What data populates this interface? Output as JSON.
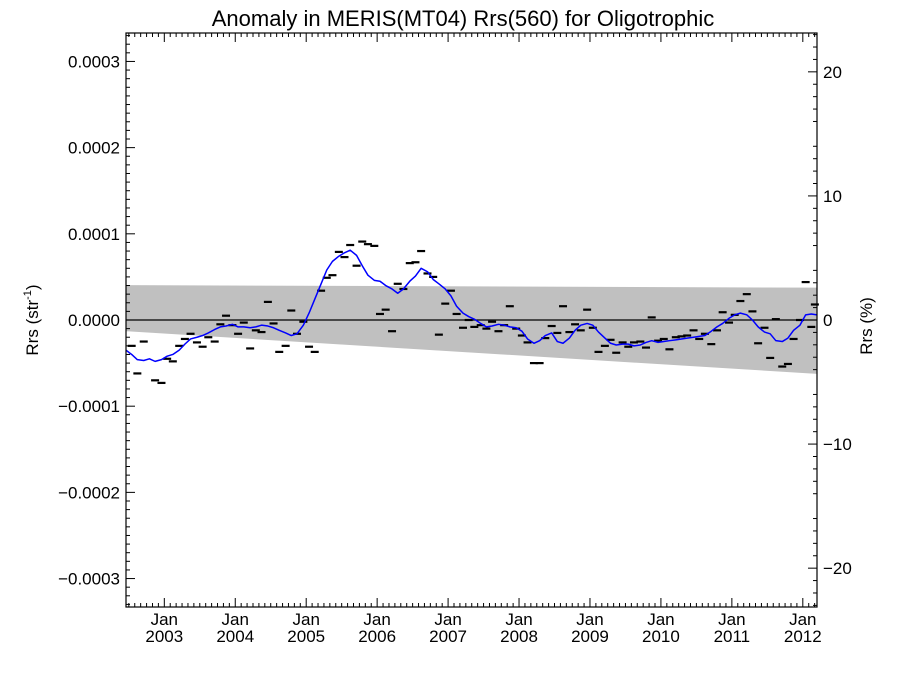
{
  "chart_data": {
    "type": "line",
    "title": "Anomaly in MERIS(MT04) Rrs(560) for Oligotrophic",
    "ylabel_left_main": "Rrs (str",
    "ylabel_left_sup": "-1",
    "ylabel_left_close": ")",
    "ylabel_right": "Rrs (%)",
    "y_left": {
      "range": [
        -0.000333,
        0.000333
      ],
      "ticks": [
        {
          "v": 0.0003,
          "label": "0.0003"
        },
        {
          "v": 0.0002,
          "label": "0.0002"
        },
        {
          "v": 0.0001,
          "label": "0.0001"
        },
        {
          "v": 0.0,
          "label": "0.0000"
        },
        {
          "v": -0.0001,
          "label": "−0.0001"
        },
        {
          "v": -0.0002,
          "label": "−0.0002"
        },
        {
          "v": -0.0003,
          "label": "−0.0003"
        }
      ]
    },
    "y_right": {
      "range": [
        -23.13,
        23.13
      ],
      "ticks": [
        {
          "v": 20,
          "label": "20"
        },
        {
          "v": 10,
          "label": "10"
        },
        {
          "v": 0,
          "label": "0"
        },
        {
          "v": -10,
          "label": "−10"
        },
        {
          "v": -20,
          "label": "−20"
        }
      ]
    },
    "x": {
      "range": [
        2002.46,
        2012.2
      ],
      "ticks": [
        {
          "v": 2003.0,
          "month": "Jan",
          "year": "2003"
        },
        {
          "v": 2004.0,
          "month": "Jan",
          "year": "2004"
        },
        {
          "v": 2005.0,
          "month": "Jan",
          "year": "2005"
        },
        {
          "v": 2006.0,
          "month": "Jan",
          "year": "2006"
        },
        {
          "v": 2007.0,
          "month": "Jan",
          "year": "2007"
        },
        {
          "v": 2008.0,
          "month": "Jan",
          "year": "2008"
        },
        {
          "v": 2009.0,
          "month": "Jan",
          "year": "2009"
        },
        {
          "v": 2010.0,
          "month": "Jan",
          "year": "2010"
        },
        {
          "v": 2011.0,
          "month": "Jan",
          "year": "2011"
        },
        {
          "v": 2012.0,
          "month": "Jan",
          "year": "2012"
        }
      ]
    },
    "zero_line": 0.0,
    "band": {
      "color": "#c0c0c0",
      "upper": [
        [
          2002.46,
          4.05e-05
        ],
        [
          2012.2,
          3.75e-05
        ]
      ],
      "lower": [
        [
          2002.46,
          -1.3e-05
        ],
        [
          2012.2,
          -6.25e-05
        ]
      ]
    },
    "series": [
      {
        "kind": "monthly_marks",
        "color": "#000000",
        "points": [
          [
            2002.54,
            -3e-05
          ],
          [
            2002.62,
            -6.2e-05
          ],
          [
            2002.71,
            -2.5e-05
          ],
          [
            2002.87,
            -7e-05
          ],
          [
            2002.96,
            -7.3e-05
          ],
          [
            2003.04,
            -4.5e-05
          ],
          [
            2003.12,
            -4.8e-05
          ],
          [
            2003.21,
            -3e-05
          ],
          [
            2003.29,
            -2.2e-05
          ],
          [
            2003.37,
            -1.6e-05
          ],
          [
            2003.46,
            -2.6e-05
          ],
          [
            2003.54,
            -3.1e-05
          ],
          [
            2003.62,
            -2e-05
          ],
          [
            2003.71,
            -2.5e-05
          ],
          [
            2003.79,
            -5e-06
          ],
          [
            2003.87,
            5e-06
          ],
          [
            2003.96,
            -6e-06
          ],
          [
            2004.04,
            -1.6e-05
          ],
          [
            2004.12,
            -3e-06
          ],
          [
            2004.21,
            -3.3e-05
          ],
          [
            2004.29,
            -1.2e-05
          ],
          [
            2004.37,
            -1.4e-05
          ],
          [
            2004.46,
            2.1e-05
          ],
          [
            2004.54,
            -4e-06
          ],
          [
            2004.62,
            -3.7e-05
          ],
          [
            2004.71,
            -3e-05
          ],
          [
            2004.79,
            1.1e-05
          ],
          [
            2004.87,
            -1.6e-05
          ],
          [
            2004.96,
            -2e-06
          ],
          [
            2005.04,
            -3.1e-05
          ],
          [
            2005.12,
            -3.7e-05
          ],
          [
            2005.21,
            3.4e-05
          ],
          [
            2005.29,
            4.9e-05
          ],
          [
            2005.37,
            5.2e-05
          ],
          [
            2005.46,
            7.9e-05
          ],
          [
            2005.54,
            7.3e-05
          ],
          [
            2005.62,
            8.7e-05
          ],
          [
            2005.71,
            6.3e-05
          ],
          [
            2005.79,
            9.1e-05
          ],
          [
            2005.87,
            8.8e-05
          ],
          [
            2005.96,
            8.6e-05
          ],
          [
            2006.04,
            7e-06
          ],
          [
            2006.12,
            1.2e-05
          ],
          [
            2006.21,
            -1.3e-05
          ],
          [
            2006.29,
            4.2e-05
          ],
          [
            2006.37,
            3.6e-05
          ],
          [
            2006.46,
            6.6e-05
          ],
          [
            2006.54,
            6.7e-05
          ],
          [
            2006.62,
            8e-05
          ],
          [
            2006.71,
            5.4e-05
          ],
          [
            2006.79,
            5e-05
          ],
          [
            2006.87,
            -1.7e-05
          ],
          [
            2006.96,
            1.9e-05
          ],
          [
            2007.04,
            3.4e-05
          ],
          [
            2007.12,
            7e-06
          ],
          [
            2007.21,
            -9e-06
          ],
          [
            2007.29,
            0.0
          ],
          [
            2007.37,
            -8e-06
          ],
          [
            2007.46,
            -6e-06
          ],
          [
            2007.54,
            -1e-05
          ],
          [
            2007.62,
            -2e-06
          ],
          [
            2007.71,
            -1.3e-05
          ],
          [
            2007.79,
            -6e-06
          ],
          [
            2007.87,
            1.6e-05
          ],
          [
            2007.96,
            -1e-05
          ],
          [
            2008.04,
            -1.8e-05
          ],
          [
            2008.12,
            -2.6e-05
          ],
          [
            2008.21,
            -5e-05
          ],
          [
            2008.29,
            -5e-05
          ],
          [
            2008.37,
            -2.1e-05
          ],
          [
            2008.46,
            -7e-06
          ],
          [
            2008.54,
            -1.5e-05
          ],
          [
            2008.62,
            1.6e-05
          ],
          [
            2008.71,
            -1.4e-05
          ],
          [
            2008.79,
            -5e-06
          ],
          [
            2008.87,
            -1.2e-05
          ],
          [
            2008.96,
            1.2e-05
          ],
          [
            2009.04,
            -9e-06
          ],
          [
            2009.12,
            -3.7e-05
          ],
          [
            2009.21,
            -3e-05
          ],
          [
            2009.29,
            -2.3e-05
          ],
          [
            2009.37,
            -3.8e-05
          ],
          [
            2009.46,
            -2.6e-05
          ],
          [
            2009.54,
            -3.1e-05
          ],
          [
            2009.62,
            -2.6e-05
          ],
          [
            2009.71,
            -2.5e-05
          ],
          [
            2009.79,
            -3.2e-05
          ],
          [
            2009.87,
            3e-06
          ],
          [
            2009.96,
            -2.4e-05
          ],
          [
            2010.04,
            -2.2e-05
          ],
          [
            2010.12,
            -3.4e-05
          ],
          [
            2010.21,
            -2e-05
          ],
          [
            2010.29,
            -1.9e-05
          ],
          [
            2010.37,
            -1.8e-05
          ],
          [
            2010.46,
            -1.2e-05
          ],
          [
            2010.54,
            -2.2e-05
          ],
          [
            2010.62,
            -1.6e-05
          ],
          [
            2010.71,
            -2.8e-05
          ],
          [
            2010.79,
            -1.2e-05
          ],
          [
            2010.87,
            9e-06
          ],
          [
            2010.96,
            -3e-06
          ],
          [
            2011.04,
            6e-06
          ],
          [
            2011.12,
            2.2e-05
          ],
          [
            2011.21,
            3e-05
          ],
          [
            2011.29,
            1e-05
          ],
          [
            2011.37,
            -2.7e-05
          ],
          [
            2011.46,
            -9e-06
          ],
          [
            2011.54,
            -4.4e-05
          ],
          [
            2011.62,
            1e-06
          ],
          [
            2011.71,
            -5.4e-05
          ],
          [
            2011.79,
            -5.1e-05
          ],
          [
            2011.87,
            -2.2e-05
          ],
          [
            2011.96,
            0.0
          ],
          [
            2012.04,
            4.4e-05
          ],
          [
            2012.12,
            -8e-06
          ],
          [
            2012.17,
            1.8e-05
          ]
        ]
      },
      {
        "kind": "running_mean",
        "color": "#0000ff",
        "points": [
          [
            2002.46,
            -3.5e-05
          ],
          [
            2002.54,
            -4e-05
          ],
          [
            2002.62,
            -4.6e-05
          ],
          [
            2002.71,
            -4.7e-05
          ],
          [
            2002.79,
            -4.5e-05
          ],
          [
            2002.87,
            -4.8e-05
          ],
          [
            2002.96,
            -4.6e-05
          ],
          [
            2003.04,
            -4.2e-05
          ],
          [
            2003.12,
            -4e-05
          ],
          [
            2003.21,
            -3.5e-05
          ],
          [
            2003.29,
            -2.8e-05
          ],
          [
            2003.37,
            -2.2e-05
          ],
          [
            2003.46,
            -2e-05
          ],
          [
            2003.54,
            -1.8e-05
          ],
          [
            2003.62,
            -1.5e-05
          ],
          [
            2003.71,
            -1.1e-05
          ],
          [
            2003.79,
            -8e-06
          ],
          [
            2003.87,
            -7e-06
          ],
          [
            2003.96,
            -5e-06
          ],
          [
            2004.04,
            -8e-06
          ],
          [
            2004.12,
            -8e-06
          ],
          [
            2004.21,
            -9e-06
          ],
          [
            2004.29,
            -8e-06
          ],
          [
            2004.37,
            -6e-06
          ],
          [
            2004.46,
            -7e-06
          ],
          [
            2004.54,
            -9e-06
          ],
          [
            2004.62,
            -1.2e-05
          ],
          [
            2004.71,
            -1.5e-05
          ],
          [
            2004.79,
            -1.8e-05
          ],
          [
            2004.87,
            -1.6e-05
          ],
          [
            2004.96,
            -6e-06
          ],
          [
            2005.04,
            8e-06
          ],
          [
            2005.12,
            2.4e-05
          ],
          [
            2005.21,
            4.2e-05
          ],
          [
            2005.29,
            5.8e-05
          ],
          [
            2005.37,
            6.8e-05
          ],
          [
            2005.46,
            7.4e-05
          ],
          [
            2005.54,
            7.8e-05
          ],
          [
            2005.62,
            8.1e-05
          ],
          [
            2005.71,
            7.5e-05
          ],
          [
            2005.79,
            6.3e-05
          ],
          [
            2005.87,
            5.2e-05
          ],
          [
            2005.96,
            4.6e-05
          ],
          [
            2006.04,
            4.5e-05
          ],
          [
            2006.12,
            4e-05
          ],
          [
            2006.21,
            3.6e-05
          ],
          [
            2006.29,
            3.1e-05
          ],
          [
            2006.37,
            3.6e-05
          ],
          [
            2006.46,
            4.5e-05
          ],
          [
            2006.54,
            5.1e-05
          ],
          [
            2006.62,
            6e-05
          ],
          [
            2006.71,
            5.6e-05
          ],
          [
            2006.79,
            4.7e-05
          ],
          [
            2006.87,
            4.2e-05
          ],
          [
            2006.96,
            3.6e-05
          ],
          [
            2007.04,
            2.8e-05
          ],
          [
            2007.12,
            1.6e-05
          ],
          [
            2007.21,
            8e-06
          ],
          [
            2007.29,
            4e-06
          ],
          [
            2007.37,
            1e-06
          ],
          [
            2007.46,
            -4e-06
          ],
          [
            2007.54,
            -8e-06
          ],
          [
            2007.62,
            -7e-06
          ],
          [
            2007.71,
            -5e-06
          ],
          [
            2007.79,
            -6e-06
          ],
          [
            2007.87,
            -8e-06
          ],
          [
            2007.96,
            -9e-06
          ],
          [
            2008.04,
            -1.3e-05
          ],
          [
            2008.12,
            -2.2e-05
          ],
          [
            2008.21,
            -2.7e-05
          ],
          [
            2008.29,
            -2.4e-05
          ],
          [
            2008.37,
            -1.8e-05
          ],
          [
            2008.46,
            -1.5e-05
          ],
          [
            2008.54,
            -2.5e-05
          ],
          [
            2008.62,
            -2.7e-05
          ],
          [
            2008.71,
            -2.1e-05
          ],
          [
            2008.79,
            -1.2e-05
          ],
          [
            2008.87,
            -6e-06
          ],
          [
            2008.96,
            -4e-06
          ],
          [
            2009.04,
            -6e-06
          ],
          [
            2009.12,
            -1.4e-05
          ],
          [
            2009.21,
            -2.1e-05
          ],
          [
            2009.29,
            -2.7e-05
          ],
          [
            2009.37,
            -2.9e-05
          ],
          [
            2009.46,
            -2.8e-05
          ],
          [
            2009.54,
            -2.8e-05
          ],
          [
            2009.62,
            -3e-05
          ],
          [
            2009.71,
            -2.9e-05
          ],
          [
            2009.79,
            -2.6e-05
          ],
          [
            2009.87,
            -2.4e-05
          ],
          [
            2009.96,
            -2.6e-05
          ],
          [
            2010.04,
            -2.5e-05
          ],
          [
            2010.12,
            -2.4e-05
          ],
          [
            2010.21,
            -2.3e-05
          ],
          [
            2010.29,
            -2.2e-05
          ],
          [
            2010.37,
            -2.1e-05
          ],
          [
            2010.46,
            -2e-05
          ],
          [
            2010.54,
            -1.9e-05
          ],
          [
            2010.62,
            -1.8e-05
          ],
          [
            2010.71,
            -1.3e-05
          ],
          [
            2010.79,
            -8e-06
          ],
          [
            2010.87,
            -4e-06
          ],
          [
            2010.96,
            2e-06
          ],
          [
            2011.04,
            6e-06
          ],
          [
            2011.12,
            8e-06
          ],
          [
            2011.21,
            6e-06
          ],
          [
            2011.29,
            0.0
          ],
          [
            2011.37,
            -8e-06
          ],
          [
            2011.46,
            -1.4e-05
          ],
          [
            2011.54,
            -1.6e-05
          ],
          [
            2011.62,
            -2.4e-05
          ],
          [
            2011.71,
            -2.5e-05
          ],
          [
            2011.79,
            -2.1e-05
          ],
          [
            2011.87,
            -1.2e-05
          ],
          [
            2011.96,
            -6e-06
          ],
          [
            2012.04,
            6e-06
          ],
          [
            2012.12,
            7e-06
          ],
          [
            2012.2,
            6e-06
          ]
        ]
      }
    ],
    "grid": false,
    "legend": "none"
  }
}
